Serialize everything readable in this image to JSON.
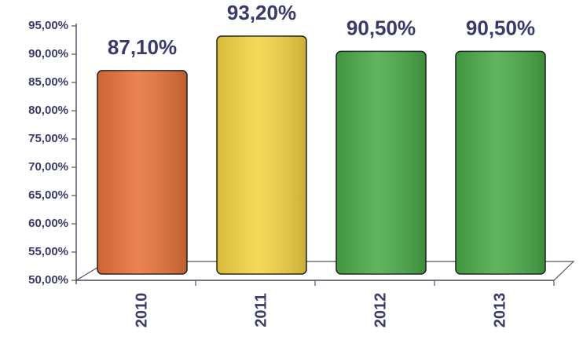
{
  "chart_data": {
    "type": "bar",
    "categories": [
      "2010",
      "2011",
      "2012",
      "2013"
    ],
    "values": [
      87.1,
      93.2,
      90.5,
      90.5
    ],
    "value_labels": [
      "87,10%",
      "93,20%",
      "90,50%",
      "90,50%"
    ],
    "colors": [
      "#e8733a",
      "#f6d443",
      "#4aab48",
      "#4aab48"
    ],
    "ylim": [
      50,
      95
    ],
    "yticks": [
      {
        "value": 50,
        "label": "50,00%"
      },
      {
        "value": 55,
        "label": "55,00%"
      },
      {
        "value": 60,
        "label": "60,00%"
      },
      {
        "value": 65,
        "label": "65,00%"
      },
      {
        "value": 70,
        "label": "70,00%"
      },
      {
        "value": 75,
        "label": "75,00%"
      },
      {
        "value": 80,
        "label": "80,00%"
      },
      {
        "value": 85,
        "label": "85,00%"
      },
      {
        "value": 90,
        "label": "90,00%"
      },
      {
        "value": 95,
        "label": "95,00%"
      }
    ]
  }
}
